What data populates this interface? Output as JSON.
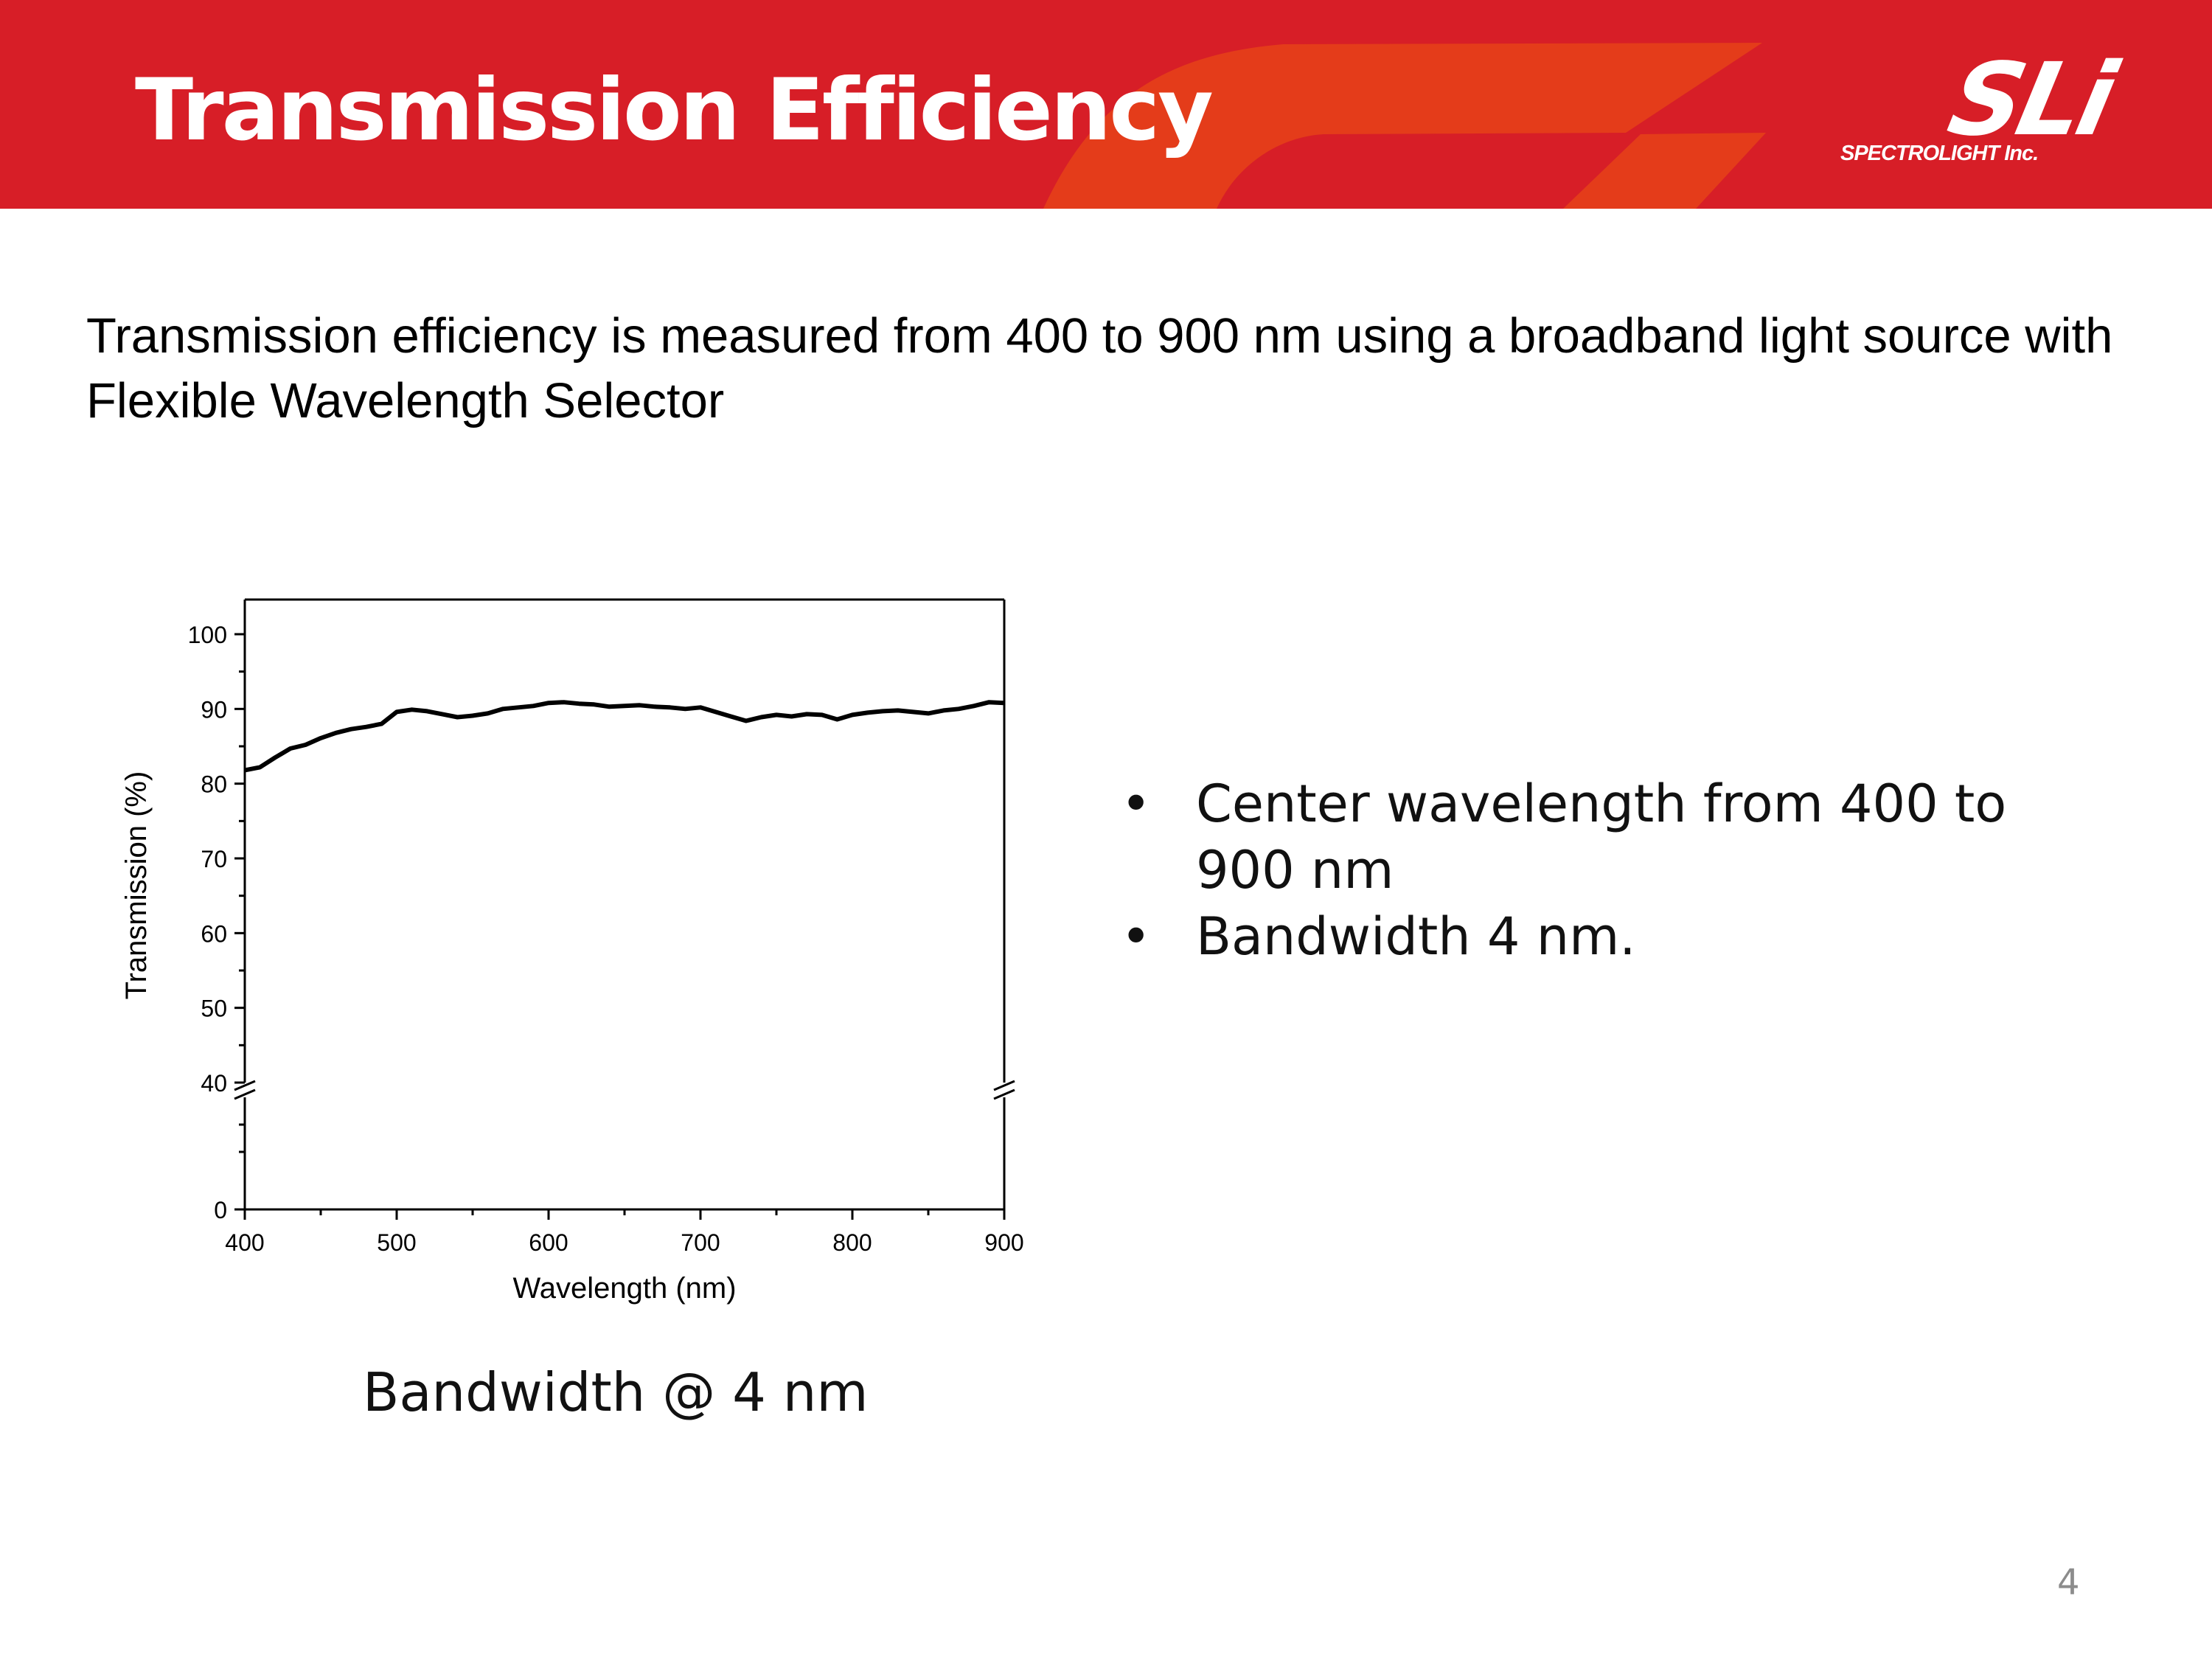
{
  "header": {
    "title": "Transmission Efficiency",
    "logo_text": "SLi",
    "logo_subtext": "SPECTROLIGHT Inc.",
    "colors": {
      "band": "#d71e27",
      "swoosh": "#e63c1b"
    }
  },
  "intro_text": "Transmission efficiency is measured from 400 to 900 nm using a broadband light source with Flexible Wavelength Selector",
  "chart_caption": "Bandwidth @ 4 nm",
  "bullets": [
    "Center wavelength from 400 to 900 nm",
    "Bandwidth 4 nm."
  ],
  "page_number": "4",
  "chart_data": {
    "type": "line",
    "xlabel": "Wavelength (nm)",
    "ylabel": "Transmission (%)",
    "xlim": [
      400,
      900
    ],
    "ylim": [
      0,
      100
    ],
    "axis_break": [
      0,
      40
    ],
    "x_ticks": [
      400,
      500,
      600,
      700,
      800,
      900
    ],
    "y_ticks_upper": [
      40,
      50,
      60,
      70,
      80,
      90,
      100
    ],
    "y_ticks_lower": [
      0
    ],
    "line_color": "#000000",
    "series": [
      {
        "x": [
          400,
          410,
          420,
          430,
          440,
          450,
          460,
          470,
          480,
          490,
          500,
          510,
          520,
          530,
          540,
          550,
          560,
          570,
          580,
          590,
          600,
          610,
          620,
          630,
          640,
          650,
          660,
          670,
          680,
          690,
          700,
          710,
          720,
          730,
          740,
          750,
          760,
          770,
          780,
          790,
          800,
          810,
          820,
          830,
          840,
          850,
          860,
          870,
          880,
          890,
          900
        ],
        "y": [
          81.8,
          82.2,
          83.5,
          84.7,
          85.2,
          86.1,
          86.8,
          87.3,
          87.6,
          88.0,
          89.6,
          89.9,
          89.7,
          89.3,
          88.9,
          89.1,
          89.4,
          90.0,
          90.2,
          90.4,
          90.8,
          90.9,
          90.7,
          90.6,
          90.3,
          90.4,
          90.5,
          90.3,
          90.2,
          90.0,
          90.2,
          89.6,
          89.0,
          88.4,
          88.9,
          89.2,
          89.0,
          89.3,
          89.2,
          88.6,
          89.2,
          89.5,
          89.7,
          89.8,
          89.6,
          89.4,
          89.8,
          90.0,
          90.4,
          90.9,
          90.8
        ]
      }
    ]
  }
}
